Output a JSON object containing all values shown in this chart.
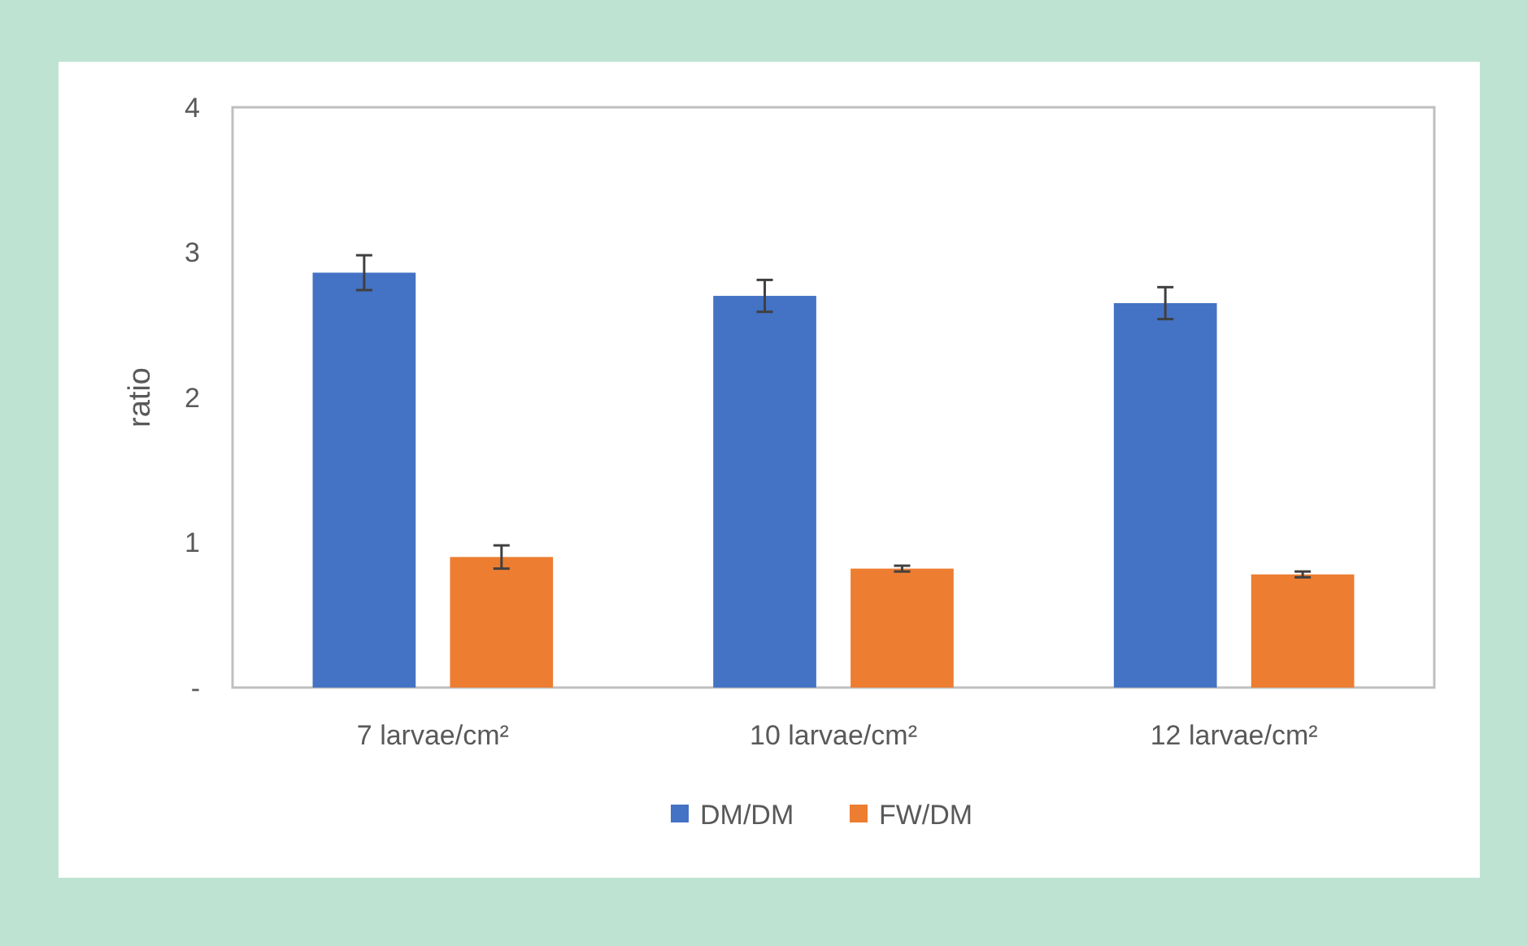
{
  "chart_data": {
    "type": "bar",
    "ylabel": "ratio",
    "categories": [
      "7 larvae/cm²",
      "10 larvae/cm²",
      "12 larvae/cm²"
    ],
    "series": [
      {
        "name": "DM/DM",
        "color": "#4472c4",
        "values": [
          2.86,
          2.7,
          2.65
        ],
        "errors": [
          0.12,
          0.11,
          0.11
        ]
      },
      {
        "name": "FW/DM",
        "color": "#ed7d31",
        "values": [
          0.9,
          0.82,
          0.78
        ],
        "errors": [
          0.08,
          0.02,
          0.02
        ]
      }
    ],
    "ylim": [
      0,
      4
    ],
    "yticks": [
      {
        "value": 0,
        "label": "-"
      },
      1,
      2,
      3,
      4
    ],
    "grid": false,
    "legend": "bottom"
  }
}
